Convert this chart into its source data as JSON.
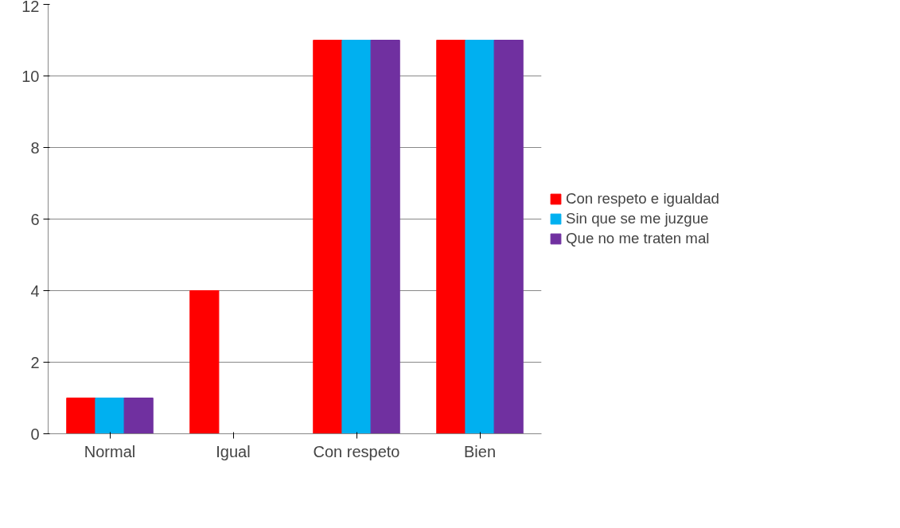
{
  "chart_data": {
    "type": "bar",
    "categories": [
      "Normal",
      "Igual",
      "Con respeto",
      "Bien"
    ],
    "series": [
      {
        "name": "Con respeto e igualdad",
        "color": "#ff0000",
        "values": [
          1,
          4,
          11,
          11
        ]
      },
      {
        "name": "Sin que se me juzgue",
        "color": "#00b0f0",
        "values": [
          1,
          null,
          11,
          11
        ]
      },
      {
        "name": "Que no me traten mal",
        "color": "#7030a0",
        "values": [
          1,
          null,
          11,
          11
        ]
      }
    ],
    "ylim": [
      0,
      12
    ],
    "yticks": [
      0,
      2,
      4,
      6,
      8,
      10,
      12
    ],
    "grid": "y",
    "legend": "right"
  }
}
